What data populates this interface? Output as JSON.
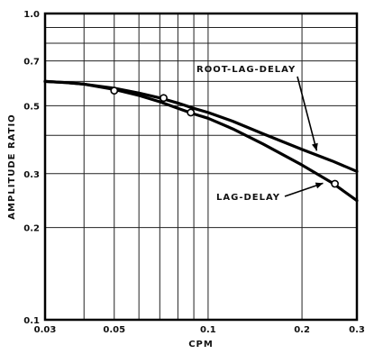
{
  "chart_data": {
    "type": "line",
    "xscale": "log",
    "yscale": "log",
    "xlabel": "CPM",
    "ylabel": "AMPLITUDE RATIO",
    "xlim": [
      0.03,
      0.3
    ],
    "ylim": [
      0.1,
      1.0
    ],
    "grid": true,
    "x_ticks": [
      {
        "value": 0.03,
        "label": "0.03"
      },
      {
        "value": 0.05,
        "label": "0.05"
      },
      {
        "value": 0.1,
        "label": "0.1"
      },
      {
        "value": 0.2,
        "label": "0.2"
      },
      {
        "value": 0.3,
        "label": "0.3"
      }
    ],
    "y_ticks": [
      {
        "value": 0.1,
        "label": "0.1"
      },
      {
        "value": 0.2,
        "label": "0.2"
      },
      {
        "value": 0.3,
        "label": "0.3"
      },
      {
        "value": 0.5,
        "label": "0.5"
      },
      {
        "value": 0.7,
        "label": "0.7"
      },
      {
        "value": 1.0,
        "label": "1.0"
      }
    ],
    "x_grid": [
      0.04,
      0.05,
      0.06,
      0.07,
      0.08,
      0.09,
      0.1,
      0.2
    ],
    "y_grid": [
      0.2,
      0.3,
      0.4,
      0.5,
      0.6,
      0.7,
      0.8,
      0.9
    ],
    "series": [
      {
        "name": "ROOT-LAG-DELAY",
        "x": [
          0.03,
          0.035,
          0.04,
          0.05,
          0.06,
          0.07,
          0.08,
          0.09,
          0.1,
          0.12,
          0.15,
          0.2,
          0.25,
          0.3
        ],
        "y": [
          0.6,
          0.595,
          0.588,
          0.57,
          0.55,
          0.53,
          0.51,
          0.49,
          0.475,
          0.445,
          0.405,
          0.36,
          0.33,
          0.305
        ]
      },
      {
        "name": "LAG-DELAY",
        "x": [
          0.03,
          0.035,
          0.04,
          0.05,
          0.06,
          0.07,
          0.08,
          0.09,
          0.1,
          0.12,
          0.15,
          0.2,
          0.25,
          0.3
        ],
        "y": [
          0.6,
          0.595,
          0.588,
          0.565,
          0.54,
          0.515,
          0.49,
          0.47,
          0.455,
          0.42,
          0.375,
          0.32,
          0.28,
          0.245
        ]
      }
    ],
    "points": [
      {
        "x": 0.05,
        "y": 0.56
      },
      {
        "x": 0.072,
        "y": 0.53
      },
      {
        "x": 0.088,
        "y": 0.475
      },
      {
        "x": 0.255,
        "y": 0.278
      }
    ],
    "annotations": [
      {
        "text": "ROOT-LAG-DELAY",
        "series": 0
      },
      {
        "text": "LAG-DELAY",
        "series": 1
      }
    ]
  }
}
